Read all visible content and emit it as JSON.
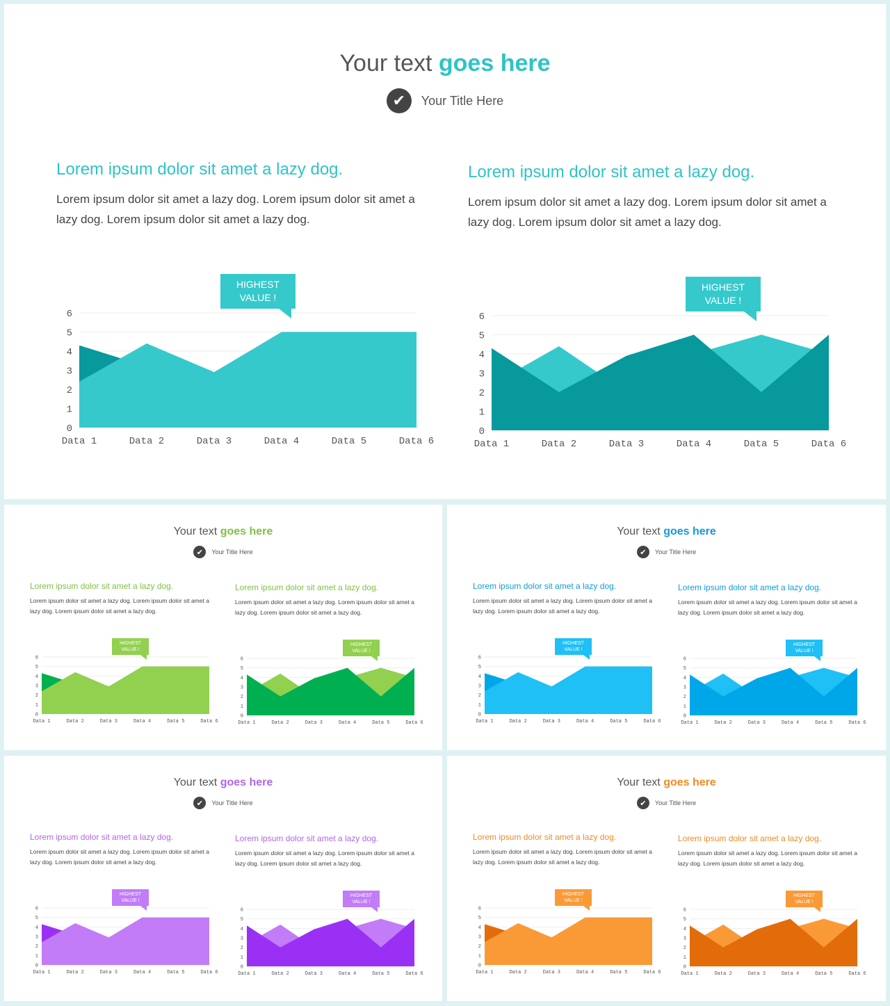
{
  "slides": [
    {
      "header": {
        "title_plain": "Your text",
        "title_accent": "goes here",
        "subtitle": "Your Title Here"
      },
      "theme": {
        "accent": "#2ec4c6",
        "light": "#35c9cc",
        "dark": "#07999c"
      },
      "columns": [
        {
          "heading": "Lorem ipsum dolor sit amet a lazy dog.",
          "body": "Lorem ipsum dolor sit amet a lazy dog. Lorem ipsum dolor sit amet a lazy dog. Lorem ipsum dolor sit amet a lazy dog.",
          "callout": "HIGHEST VALUE !"
        },
        {
          "heading": "Lorem ipsum dolor sit amet a lazy dog.",
          "body": "Lorem ipsum dolor sit amet a lazy dog. Lorem ipsum dolor sit amet a lazy dog. Lorem ipsum dolor sit amet a lazy dog.",
          "callout": "HIGHEST VALUE !"
        }
      ]
    },
    {
      "header": {
        "title_plain": "Your text",
        "title_accent": "goes here",
        "subtitle": "Your Title Here"
      },
      "theme": {
        "accent": "#7dc142",
        "light": "#92d050",
        "dark": "#00b050"
      },
      "columns": [
        {
          "heading": "Lorem ipsum dolor sit amet a lazy dog.",
          "body": "Lorem ipsum dolor sit amet a lazy dog. Lorem ipsum dolor sit amet a lazy dog. Lorem ipsum dolor sit amet a lazy dog.",
          "callout": "HIGHEST VALUE !"
        },
        {
          "heading": "Lorem ipsum dolor sit amet a lazy dog.",
          "body": "Lorem ipsum dolor sit amet a lazy dog. Lorem ipsum dolor sit amet a lazy dog. Lorem ipsum dolor sit amet a lazy dog.",
          "callout": "HIGHEST VALUE !"
        }
      ]
    },
    {
      "header": {
        "title_plain": "Your text",
        "title_accent": "goes here",
        "subtitle": "Your Title Here"
      },
      "theme": {
        "accent": "#0f9bd7",
        "light": "#1ec0f5",
        "dark": "#00a7e8"
      },
      "columns": [
        {
          "heading": "Lorem ipsum dolor sit amet a lazy dog.",
          "body": "Lorem ipsum dolor sit amet a lazy dog. Lorem ipsum dolor sit amet a lazy dog. Lorem ipsum dolor sit amet a lazy dog.",
          "callout": "HIGHEST VALUE !"
        },
        {
          "heading": "Lorem ipsum dolor sit amet a lazy dog.",
          "body": "Lorem ipsum dolor sit amet a lazy dog. Lorem ipsum dolor sit amet a lazy dog. Lorem ipsum dolor sit amet a lazy dog.",
          "callout": "HIGHEST VALUE !"
        }
      ]
    },
    {
      "header": {
        "title_plain": "Your text",
        "title_accent": "goes here",
        "subtitle": "Your Title Here"
      },
      "theme": {
        "accent": "#b066e8",
        "light": "#c27cf7",
        "dark": "#9b30f5"
      },
      "columns": [
        {
          "heading": "Lorem ipsum dolor sit amet a lazy dog.",
          "body": "Lorem ipsum dolor sit amet a lazy dog. Lorem ipsum dolor sit amet a lazy dog. Lorem ipsum dolor sit amet a lazy dog.",
          "callout": "HIGHEST VALUE !"
        },
        {
          "heading": "Lorem ipsum dolor sit amet a lazy dog.",
          "body": "Lorem ipsum dolor sit amet a lazy dog. Lorem ipsum dolor sit amet a lazy dog. Lorem ipsum dolor sit amet a lazy dog.",
          "callout": "HIGHEST VALUE !"
        }
      ]
    },
    {
      "header": {
        "title_plain": "Your text",
        "title_accent": "goes here",
        "subtitle": "Your Title Here"
      },
      "theme": {
        "accent": "#f08a24",
        "light": "#fa9a36",
        "dark": "#e36c0a"
      },
      "columns": [
        {
          "heading": "Lorem ipsum dolor sit amet a lazy dog.",
          "body": "Lorem ipsum dolor sit amet a lazy dog. Lorem ipsum dolor sit amet a lazy dog. Lorem ipsum dolor sit amet a lazy dog.",
          "callout": "HIGHEST VALUE !"
        },
        {
          "heading": "Lorem ipsum dolor sit amet a lazy dog.",
          "body": "Lorem ipsum dolor sit amet a lazy dog. Lorem ipsum dolor sit amet a lazy dog. Lorem ipsum dolor sit amet a lazy dog.",
          "callout": "HIGHEST VALUE !"
        }
      ]
    }
  ],
  "chart_data": [
    {
      "type": "area",
      "categories": [
        "Data 1",
        "Data 2",
        "Data 3",
        "Data 4",
        "Data 5",
        "Data 6"
      ],
      "series": [
        {
          "values": [
            4.3,
            3.2,
            2.7,
            4.0,
            3.8,
            4.9
          ],
          "shade": "dark"
        },
        {
          "values": [
            2.4,
            4.4,
            2.9,
            5.0,
            5.0,
            5.0
          ],
          "shade": "light"
        }
      ],
      "ylim": [
        0,
        6
      ],
      "yticks": [
        0,
        1,
        2,
        3,
        4,
        5,
        6
      ]
    },
    {
      "type": "area",
      "categories": [
        "Data 1",
        "Data 2",
        "Data 3",
        "Data 4",
        "Data 5",
        "Data 6"
      ],
      "series": [
        {
          "values": [
            2.4,
            4.4,
            2.0,
            4.0,
            5.0,
            4.0
          ],
          "shade": "light"
        },
        {
          "values": [
            4.3,
            2.0,
            3.9,
            5.0,
            2.0,
            5.0
          ],
          "shade": "dark"
        }
      ],
      "ylim": [
        0,
        6
      ],
      "yticks": [
        0,
        1,
        2,
        3,
        4,
        5,
        6
      ]
    }
  ]
}
